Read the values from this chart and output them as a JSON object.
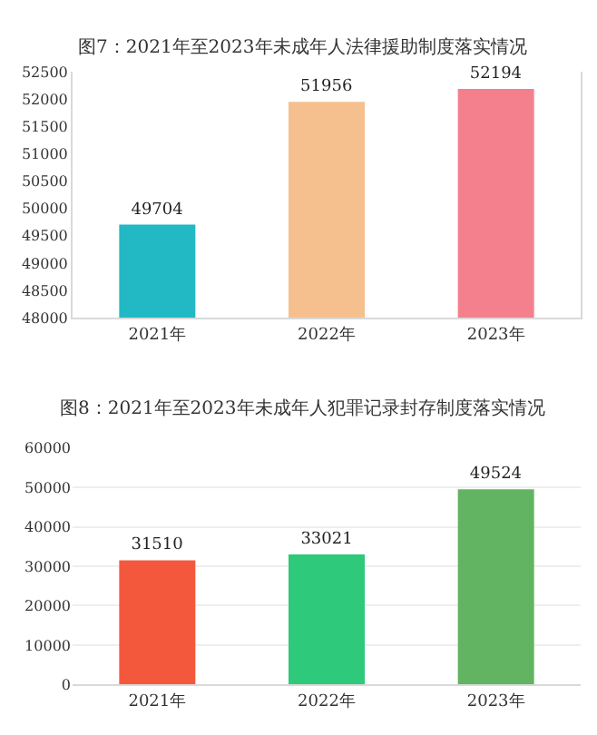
{
  "chart_data": [
    {
      "type": "bar",
      "title": "图7：2021年至2023年未成年人法律援助制度落实情况",
      "categories": [
        "2021年",
        "2022年",
        "2023年"
      ],
      "values": [
        49704,
        51956,
        52194
      ],
      "colors": [
        "#22b8c4",
        "#f5c08e",
        "#f4808e"
      ],
      "ylim": [
        48000,
        52500
      ],
      "yticks": [
        48000,
        48500,
        49000,
        49500,
        50000,
        50500,
        51000,
        51500,
        52000,
        52500
      ],
      "data_labels": true,
      "grid": false
    },
    {
      "type": "bar",
      "title": "图8：2021年至2023年未成年人犯罪记录封存制度落实情况",
      "categories": [
        "2021年",
        "2022年",
        "2023年"
      ],
      "values": [
        31510,
        33021,
        49524
      ],
      "colors": [
        "#f4583c",
        "#2ec97a",
        "#62b462"
      ],
      "ylim": [
        0,
        60000
      ],
      "yticks": [
        0,
        10000,
        20000,
        30000,
        40000,
        50000,
        60000
      ],
      "data_labels": true,
      "grid": "y"
    }
  ]
}
